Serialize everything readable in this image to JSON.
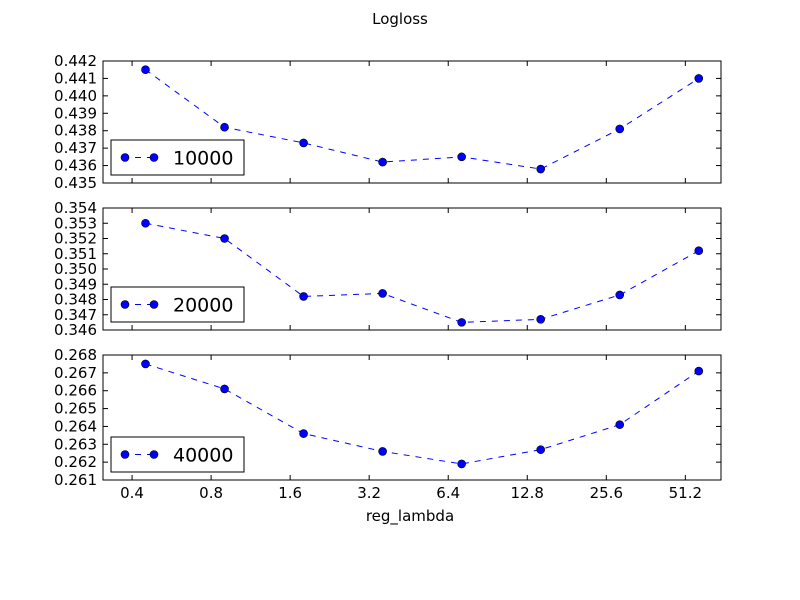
{
  "chart_data": {
    "type": "line",
    "title": "Logloss",
    "xlabel": "reg_lambda",
    "x_scale": "log2",
    "x_ticks": [
      0.4,
      0.8,
      1.6,
      3.2,
      6.4,
      12.8,
      25.6,
      51.2
    ],
    "x_tick_labels": [
      "0.4",
      "0.8",
      "1.6",
      "3.2",
      "6.4",
      "12.8",
      "25.6",
      "51.2"
    ],
    "x_values": [
      0.45,
      0.9,
      1.8,
      3.6,
      7.2,
      14.4,
      28.8,
      57.6
    ],
    "xlim": [
      0.31,
      70
    ],
    "legend_position": "lower-left",
    "line_style": "dashed",
    "marker": "circle",
    "series_color": "#0000ff",
    "subplots": [
      {
        "legend": "10000",
        "ylim": [
          0.435,
          0.442
        ],
        "y_ticks": [
          "0.435",
          "0.436",
          "0.437",
          "0.438",
          "0.439",
          "0.440",
          "0.441",
          "0.442"
        ],
        "values": [
          0.4415,
          0.4382,
          0.4373,
          0.4362,
          0.4365,
          0.4358,
          0.4381,
          0.441
        ]
      },
      {
        "legend": "20000",
        "ylim": [
          0.346,
          0.354
        ],
        "y_ticks": [
          "0.346",
          "0.347",
          "0.348",
          "0.349",
          "0.350",
          "0.351",
          "0.352",
          "0.353",
          "0.354"
        ],
        "values": [
          0.353,
          0.352,
          0.3482,
          0.3484,
          0.3465,
          0.3467,
          0.3483,
          0.3512
        ]
      },
      {
        "legend": "40000",
        "ylim": [
          0.261,
          0.268
        ],
        "y_ticks": [
          "0.261",
          "0.262",
          "0.263",
          "0.264",
          "0.265",
          "0.266",
          "0.267",
          "0.268"
        ],
        "values": [
          0.2675,
          0.2661,
          0.2636,
          0.2626,
          0.2619,
          0.2627,
          0.2641,
          0.2671
        ]
      }
    ]
  }
}
